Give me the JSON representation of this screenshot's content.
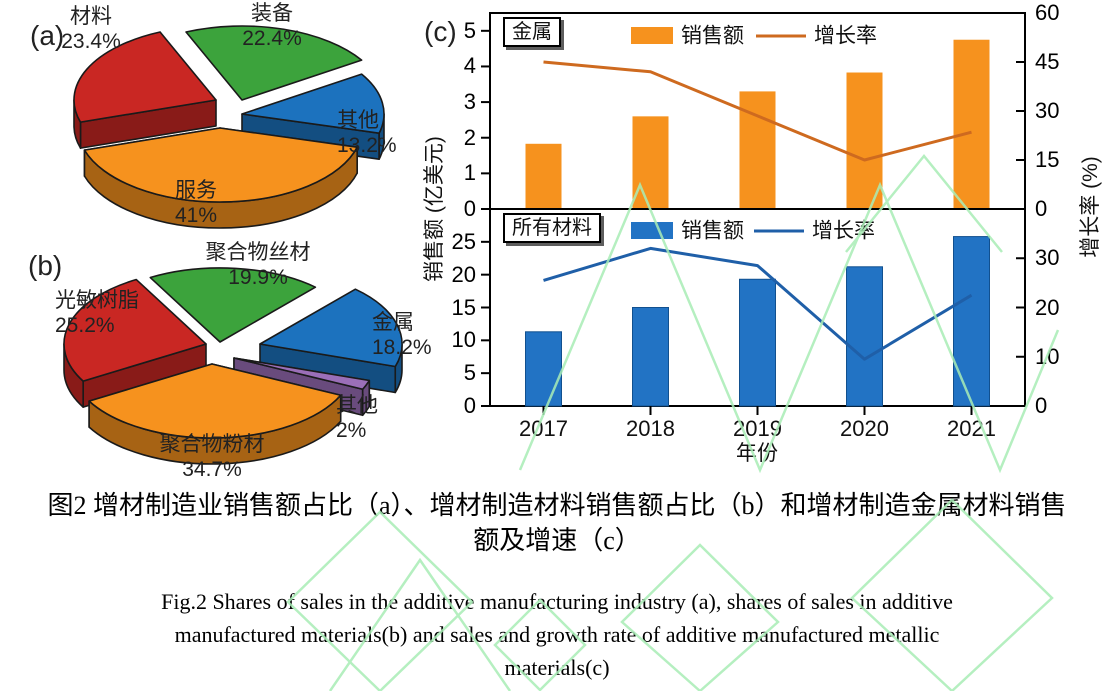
{
  "figure": {
    "panel_a_tag": "(a)",
    "panel_b_tag": "(b)",
    "panel_c_tag": "(c)"
  },
  "caption": {
    "zh_line1": "图2  增材制造业销售额占比（a）、增材制造材料销售额占比（b）和增材制造金属材料销售",
    "zh_line2": "额及增速（c）",
    "en_line1": "Fig.2 Shares of sales in the additive manufacturing industry (a), shares of sales in additive",
    "en_line2": "manufactured materials(b) and sales and growth rate of additive manufactured metallic",
    "en_line3": "materials(c)"
  },
  "chart_data": [
    {
      "id": "pie_a",
      "type": "pie",
      "title": "增材制造业销售额占比",
      "slices": [
        {
          "label": "材料",
          "pct": "23.4%",
          "value": 23.4,
          "color": "#C92723"
        },
        {
          "label": "装备",
          "pct": "22.4%",
          "value": 22.4,
          "color": "#3CA33C"
        },
        {
          "label": "其他",
          "pct": "13.2%",
          "value": 13.2,
          "color": "#1C72BE"
        },
        {
          "label": "服务",
          "pct": "41%",
          "value": 41.0,
          "color": "#F6921E"
        }
      ]
    },
    {
      "id": "pie_b",
      "type": "pie",
      "title": "增材制造材料销售额占比",
      "slices": [
        {
          "label": "聚合物丝材",
          "pct": "19.9%",
          "value": 19.9,
          "color": "#3CA33C"
        },
        {
          "label": "光敏树脂",
          "pct": "25.2%",
          "value": 25.2,
          "color": "#C92723"
        },
        {
          "label": "金属",
          "pct": "18.2%",
          "value": 18.2,
          "color": "#1C72BE"
        },
        {
          "label": "其他",
          "pct": "2%",
          "value": 2.0,
          "color": "#9B6FB8"
        },
        {
          "label": "聚合物粉材",
          "pct": "34.7%",
          "value": 34.7,
          "color": "#F6921E"
        }
      ]
    },
    {
      "id": "c_top",
      "type": "bar",
      "panel_label": "金属",
      "categories": [
        "2017",
        "2018",
        "2019",
        "2020",
        "2021"
      ],
      "bars": {
        "name": "销售额",
        "values": [
          1.83,
          2.6,
          3.3,
          3.83,
          4.75
        ],
        "color": "#F6921E"
      },
      "line": {
        "name": "增长率",
        "values": [
          45,
          42,
          28.5,
          15,
          23.5
        ],
        "color": "#CE6A1F"
      },
      "left_axis": {
        "label": "销售额 (亿美元)",
        "ticks": [
          0,
          1,
          2,
          3,
          4,
          5
        ],
        "max": 5.5
      },
      "right_axis": {
        "label": "增长率 (%)",
        "ticks": [
          0,
          15,
          30,
          45,
          60
        ],
        "max": 60
      },
      "grid": false,
      "legend_position": "top-inside"
    },
    {
      "id": "c_bottom",
      "type": "bar",
      "panel_label": "所有材料",
      "categories": [
        "2017",
        "2018",
        "2019",
        "2020",
        "2021"
      ],
      "x_label": "年份",
      "bars": {
        "name": "销售额",
        "values": [
          11.3,
          15,
          19.3,
          21.2,
          25.8
        ],
        "color": "#2273C4"
      },
      "line": {
        "name": "增长率",
        "values": [
          25.5,
          32,
          28.5,
          9.5,
          22.5
        ],
        "color": "#1F5FA8"
      },
      "left_axis": {
        "label": "销售额 (亿美元)",
        "ticks": [
          0,
          5,
          10,
          15,
          20,
          25
        ],
        "max": 30
      },
      "right_axis": {
        "label": "增长率 (%)",
        "ticks": [
          0,
          10,
          20,
          30
        ],
        "max": 40
      },
      "grid": false,
      "legend_position": "top-inside"
    }
  ]
}
